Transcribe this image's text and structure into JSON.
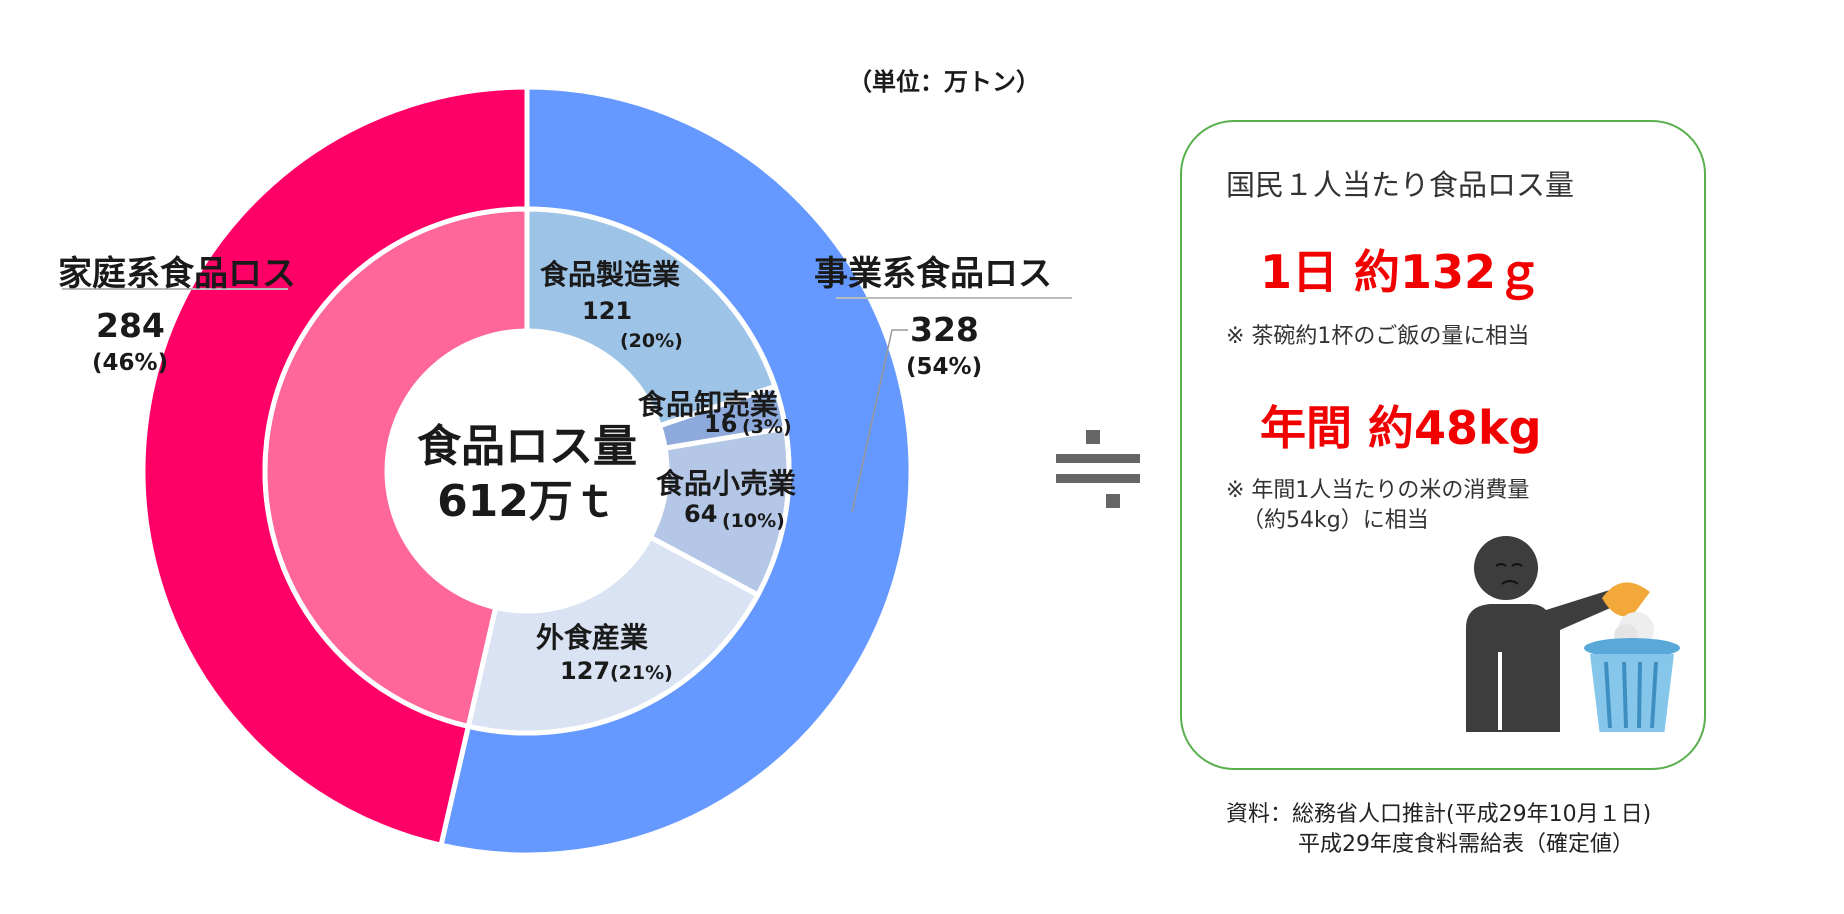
{
  "unit_label": "（単位：万トン）",
  "chart_data": {
    "type": "pie",
    "title": "食品ロス量",
    "total_label": "612万ｔ",
    "unit": "万トン",
    "outer_ring": [
      {
        "name": "事業系食品ロス",
        "value": 328,
        "percent": "(54%)",
        "color": "#6699ff"
      },
      {
        "name": "家庭系食品ロス",
        "value": 284,
        "percent": "(46%)",
        "color": "#ff0066"
      }
    ],
    "inner_ring": [
      {
        "name": "食品製造業",
        "value": 121,
        "percent": "(20%)",
        "color": "#9dc3e6"
      },
      {
        "name": "食品卸売業",
        "value": 16,
        "percent": "(3%)",
        "color": "#8ea9db"
      },
      {
        "name": "食品小売業",
        "value": 64,
        "percent": "(10%)",
        "color": "#b4c7e7"
      },
      {
        "name": "外食産業",
        "value": 127,
        "percent": "(21%)",
        "color": "#dae3f3"
      },
      {
        "name": "家庭系",
        "value": 284,
        "percent": "",
        "color": "#ff6699"
      }
    ]
  },
  "divide_symbol_name": "divide-icon",
  "info_box": {
    "title": "国民１人当たり食品ロス量",
    "daily_value": "1日 約132ｇ",
    "daily_note": "※ 茶碗約1杯のご飯の量に相当",
    "annual_value": "年間 約48kg",
    "annual_note_line1": "※ 年間1人当たりの米の消費量",
    "annual_note_line2": "（約54kg）に相当",
    "illustration": "person-throwing-rice-into-trash-can",
    "border_color": "#5ab04f",
    "accent_color": "#f20000"
  },
  "source": {
    "line1": "資料：総務省人口推計(平成29年10月１日)",
    "line2": "平成29年度食料需給表（確定値）"
  }
}
